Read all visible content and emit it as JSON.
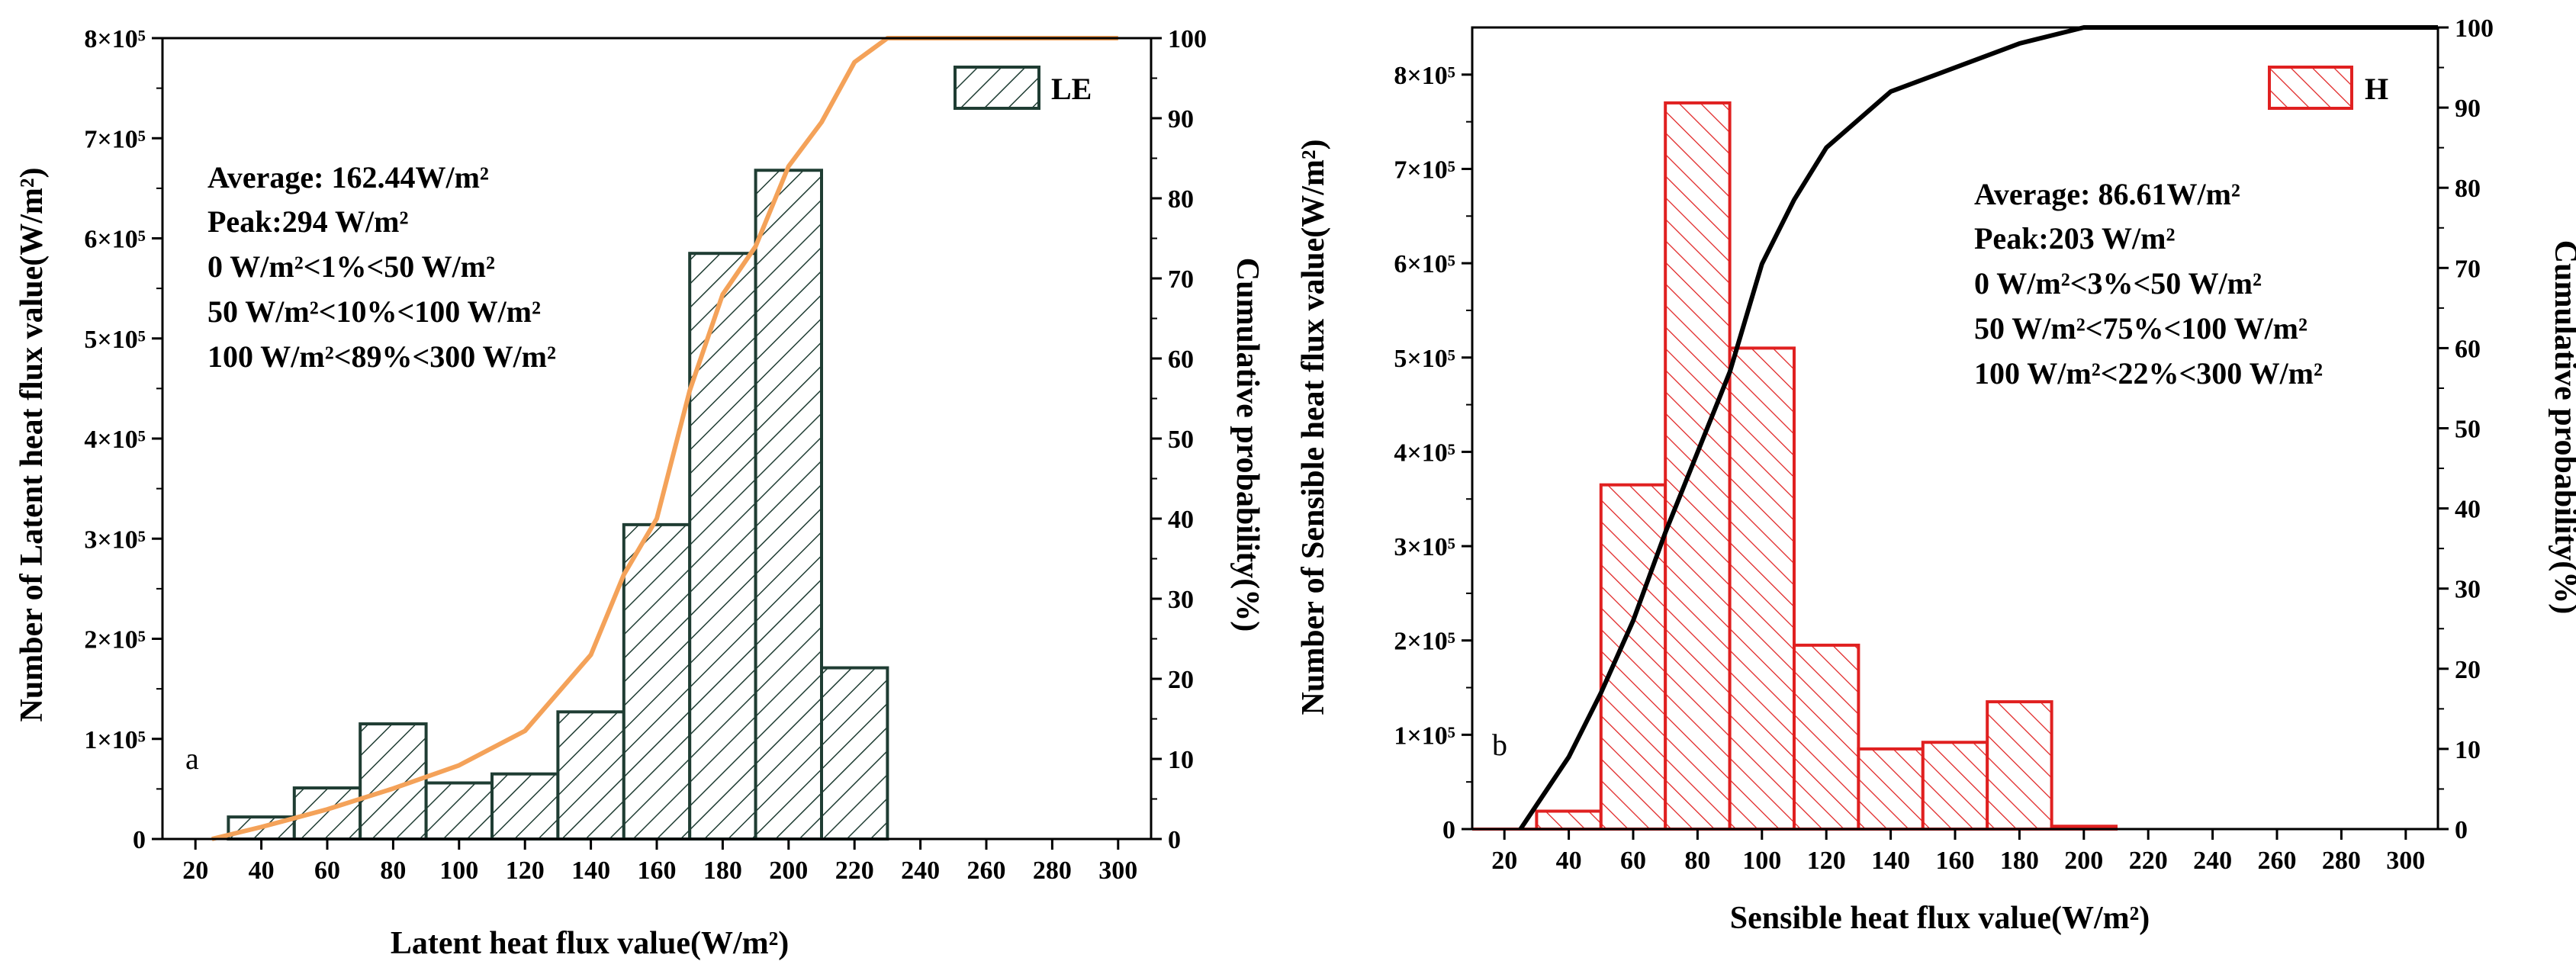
{
  "chart_data": [
    {
      "type": "bar",
      "panel_label": "a",
      "title": "",
      "xlabel": "Latent heat flux value(W/m²)",
      "ylabel": "Number of Latent heat flux value(W/m²)",
      "y2label": "Cumulative probability(%)",
      "xlim": [
        10,
        310
      ],
      "ylim": [
        0,
        800000
      ],
      "y2lim": [
        0,
        100
      ],
      "x_ticks": [
        20,
        40,
        60,
        80,
        100,
        120,
        140,
        160,
        180,
        200,
        220,
        240,
        260,
        280,
        300
      ],
      "y_ticks": [
        0,
        100000,
        200000,
        300000,
        400000,
        500000,
        600000,
        700000,
        800000
      ],
      "y_tick_labels": [
        "0",
        "1×10⁵",
        "2×10⁵",
        "3×10⁵",
        "4×10⁵",
        "5×10⁵",
        "6×10⁵",
        "7×10⁵",
        "8×10⁵"
      ],
      "y2_ticks": [
        0,
        10,
        20,
        30,
        40,
        50,
        60,
        70,
        80,
        90,
        100
      ],
      "legend": "LE",
      "legend_position": "top-right",
      "bar_color": "#1f3d33",
      "line_color": "#f4a259",
      "bars": [
        {
          "x0": 30,
          "x1": 50,
          "value": 22000
        },
        {
          "x0": 50,
          "x1": 70,
          "value": 51000
        },
        {
          "x0": 70,
          "x1": 90,
          "value": 115000
        },
        {
          "x0": 90,
          "x1": 110,
          "value": 56000
        },
        {
          "x0": 110,
          "x1": 130,
          "value": 65000
        },
        {
          "x0": 130,
          "x1": 150,
          "value": 127000
        },
        {
          "x0": 150,
          "x1": 170,
          "value": 314000
        },
        {
          "x0": 170,
          "x1": 190,
          "value": 585000
        },
        {
          "x0": 190,
          "x1": 210,
          "value": 668000
        },
        {
          "x0": 210,
          "x1": 230,
          "value": 171000
        }
      ],
      "cumulative": {
        "x": [
          25,
          40,
          60,
          80,
          100,
          120,
          140,
          150,
          160,
          170,
          180,
          190,
          200,
          210,
          220,
          230,
          240,
          260,
          280,
          300
        ],
        "y": [
          0,
          1.5,
          3.7,
          6.3,
          9.2,
          13.5,
          23,
          33,
          40,
          56,
          68,
          74,
          84,
          89.5,
          97,
          100,
          100,
          100,
          100,
          100
        ]
      },
      "annotations": {
        "line1": "Average:  162.44W/m²",
        "line2": "Peak:294 W/m²",
        "line3": "0 W/m²<1%<50 W/m²",
        "line4": "50 W/m²<10%<100 W/m²",
        "line5": "100 W/m²<89%<300 W/m²"
      }
    },
    {
      "type": "bar",
      "panel_label": "b",
      "title": "",
      "xlabel": "Sensible heat flux value(W/m²)",
      "ylabel": "Number of Sensible heat flux value(W/m²)",
      "y2label": "Cumulative probability(%)",
      "xlim": [
        10,
        310
      ],
      "ylim": [
        0,
        850000
      ],
      "y2lim": [
        0,
        100
      ],
      "x_ticks": [
        20,
        40,
        60,
        80,
        100,
        120,
        140,
        160,
        180,
        200,
        220,
        240,
        260,
        280,
        300
      ],
      "y_ticks": [
        0,
        100000,
        200000,
        300000,
        400000,
        500000,
        600000,
        700000,
        800000
      ],
      "y_tick_labels": [
        "0",
        "1×10⁵",
        "2×10⁵",
        "3×10⁵",
        "4×10⁵",
        "5×10⁵",
        "6×10⁵",
        "7×10⁵",
        "8×10⁵"
      ],
      "y2_ticks": [
        0,
        10,
        20,
        30,
        40,
        50,
        60,
        70,
        80,
        90,
        100
      ],
      "legend": "H",
      "legend_position": "top-right",
      "bar_color": "#e02020",
      "line_color": "#000000",
      "bars": [
        {
          "x0": 10,
          "x1": 30,
          "value": 0
        },
        {
          "x0": 30,
          "x1": 50,
          "value": 19000
        },
        {
          "x0": 50,
          "x1": 70,
          "value": 365000
        },
        {
          "x0": 70,
          "x1": 90,
          "value": 770000
        },
        {
          "x0": 90,
          "x1": 110,
          "value": 510000
        },
        {
          "x0": 110,
          "x1": 130,
          "value": 195000
        },
        {
          "x0": 130,
          "x1": 150,
          "value": 85000
        },
        {
          "x0": 150,
          "x1": 170,
          "value": 92000
        },
        {
          "x0": 170,
          "x1": 190,
          "value": 135000
        },
        {
          "x0": 190,
          "x1": 210,
          "value": 3000
        }
      ],
      "cumulative": {
        "x": [
          25,
          30,
          40,
          50,
          60,
          70,
          80,
          90,
          100,
          110,
          120,
          130,
          140,
          150,
          160,
          170,
          180,
          190,
          200,
          220,
          240,
          260,
          280,
          300,
          310
        ],
        "y": [
          0,
          3,
          9,
          17,
          26,
          37,
          47,
          57,
          70.5,
          78.5,
          85,
          88.5,
          92,
          93.5,
          95,
          96.5,
          98,
          99,
          100,
          100,
          100,
          100,
          100,
          100,
          100
        ]
      },
      "annotations": {
        "line1": "Average:  86.61W/m²",
        "line2": "Peak:203 W/m²",
        "line3": "0 W/m²<3%<50 W/m²",
        "line4": "50 W/m²<75%<100 W/m²",
        "line5": "100 W/m²<22%<300 W/m²"
      }
    }
  ]
}
